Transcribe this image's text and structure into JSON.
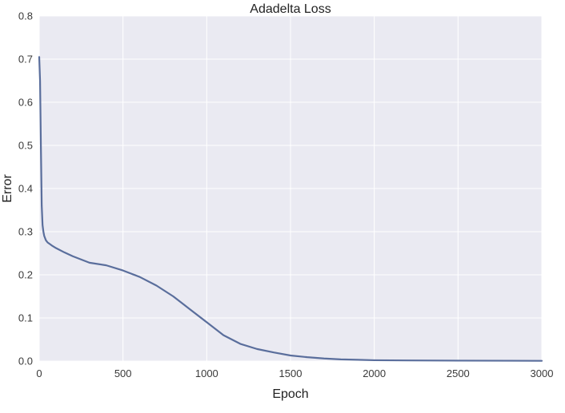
{
  "chart_data": {
    "type": "line",
    "title": "Adadelta Loss",
    "xlabel": "Epoch",
    "ylabel": "Error",
    "xlim": [
      0,
      3000
    ],
    "ylim": [
      0.0,
      0.8
    ],
    "x_ticks": [
      "0",
      "500",
      "1000",
      "1500",
      "2000",
      "2500",
      "3000"
    ],
    "y_ticks": [
      "0.0",
      "0.1",
      "0.2",
      "0.3",
      "0.4",
      "0.5",
      "0.6",
      "0.7",
      "0.8"
    ],
    "grid": true,
    "series": [
      {
        "color": "#5a6e9c",
        "x": [
          0,
          5,
          10,
          15,
          20,
          25,
          30,
          40,
          50,
          75,
          100,
          150,
          200,
          300,
          400,
          500,
          600,
          700,
          800,
          900,
          1000,
          1100,
          1200,
          1300,
          1400,
          1500,
          1600,
          1700,
          1800,
          1900,
          2000,
          2200,
          2500,
          2800,
          3000
        ],
        "y": [
          0.705,
          0.65,
          0.5,
          0.36,
          0.315,
          0.3,
          0.29,
          0.28,
          0.275,
          0.268,
          0.262,
          0.252,
          0.243,
          0.228,
          0.222,
          0.21,
          0.195,
          0.175,
          0.15,
          0.12,
          0.09,
          0.06,
          0.04,
          0.028,
          0.02,
          0.013,
          0.009,
          0.006,
          0.004,
          0.003,
          0.002,
          0.0015,
          0.001,
          0.0008,
          0.0006
        ]
      }
    ]
  },
  "colors": {
    "plot_bg": "#eaeaf2",
    "grid": "#ffffff",
    "line": "#5a6e9c"
  }
}
